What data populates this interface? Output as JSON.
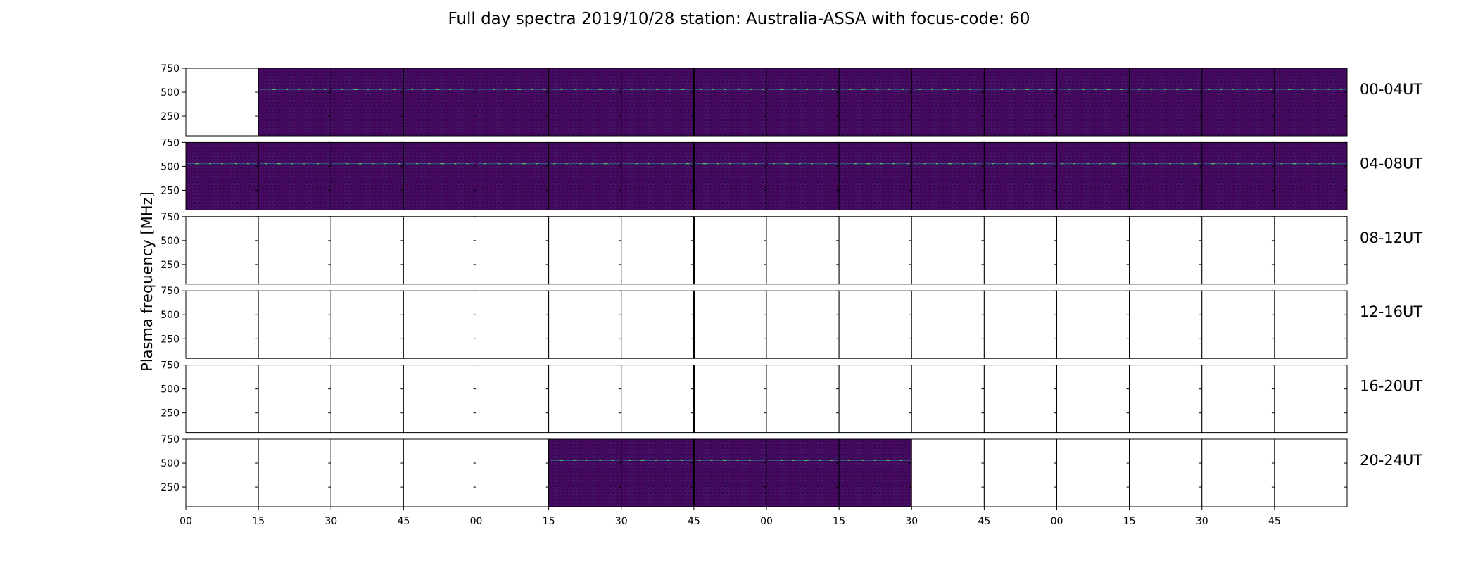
{
  "chart_data": {
    "type": "heatmap",
    "title": "Full day spectra 2019/10/28 station: Australia-ASSA with focus-code: 60",
    "ylabel": "Plasma frequency [MHz]",
    "ylim": [
      45,
      750
    ],
    "yticks": [
      "750",
      "500",
      "250"
    ],
    "xticks": [
      "00",
      "15",
      "30",
      "45",
      "00",
      "15",
      "30",
      "45",
      "00",
      "15",
      "30",
      "45",
      "00",
      "15",
      "30",
      "45"
    ],
    "colormap": "viridis",
    "colors": {
      "empty": "#ffffff",
      "low": "#44065a",
      "mid": "#21908d",
      "high": "#5ec962"
    },
    "rows": [
      {
        "label": "00-04UT",
        "segments": [
          0,
          1,
          1,
          1,
          1,
          1,
          1,
          1,
          1,
          1,
          1,
          1,
          1,
          1,
          1,
          1
        ]
      },
      {
        "label": "04-08UT",
        "segments": [
          1,
          1,
          1,
          1,
          1,
          1,
          1,
          1,
          1,
          1,
          1,
          1,
          1,
          1,
          1,
          1
        ]
      },
      {
        "label": "08-12UT",
        "segments": [
          0,
          0,
          0,
          0,
          0,
          0,
          0,
          0,
          0,
          0,
          0,
          0,
          0,
          0,
          0,
          0
        ]
      },
      {
        "label": "12-16UT",
        "segments": [
          0,
          0,
          0,
          0,
          0,
          0,
          0,
          0,
          0,
          0,
          0,
          0,
          0,
          0,
          0,
          0
        ]
      },
      {
        "label": "16-20UT",
        "segments": [
          0,
          0,
          0,
          0,
          0,
          0,
          0,
          0,
          0,
          0,
          0,
          0,
          0,
          0,
          0,
          0
        ]
      },
      {
        "label": "20-24UT",
        "segments": [
          0,
          0,
          0,
          0,
          0,
          1,
          1,
          1,
          1,
          1,
          0,
          0,
          0,
          0,
          0,
          0
        ]
      }
    ]
  }
}
